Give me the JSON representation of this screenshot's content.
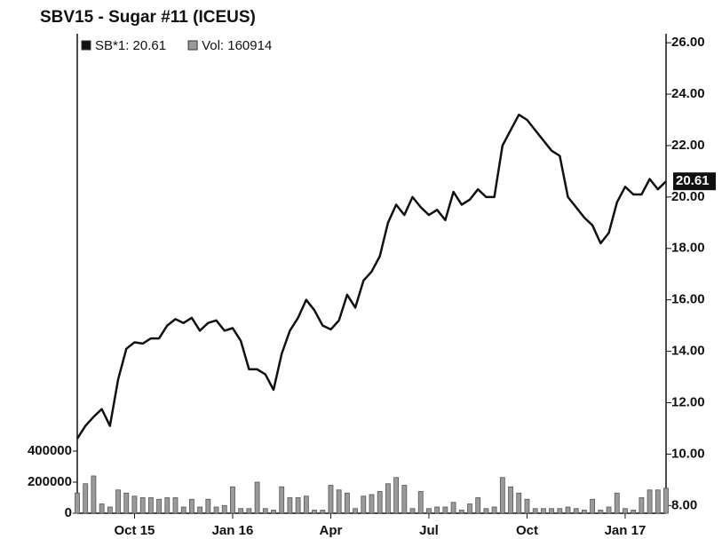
{
  "chart_data": {
    "type": "line",
    "title": "SBV15 - Sugar #11 (ICEUS)",
    "categories": [
      null,
      null,
      null,
      null,
      null,
      null,
      null,
      "Oct 15",
      null,
      null,
      null,
      null,
      null,
      null,
      null,
      null,
      null,
      null,
      null,
      "Jan 16",
      null,
      null,
      null,
      null,
      null,
      null,
      null,
      null,
      null,
      null,
      null,
      "Apr",
      null,
      null,
      null,
      null,
      null,
      null,
      null,
      null,
      null,
      null,
      null,
      "Jul",
      null,
      null,
      null,
      null,
      null,
      null,
      null,
      null,
      null,
      null,
      null,
      "Oct",
      null,
      null,
      null,
      null,
      null,
      null,
      null,
      null,
      null,
      null,
      null,
      "Jan 17",
      null,
      null,
      null,
      null,
      null
    ],
    "series": [
      {
        "name": "SB*1: 20.61",
        "type": "line",
        "color": "#111111",
        "values": [
          10.6,
          11.1,
          11.45,
          11.75,
          11.1,
          12.9,
          14.1,
          14.35,
          14.3,
          14.5,
          14.5,
          15.0,
          15.25,
          15.1,
          15.3,
          14.8,
          15.1,
          15.2,
          14.8,
          14.9,
          14.4,
          13.3,
          13.3,
          13.1,
          12.5,
          13.9,
          14.8,
          15.3,
          16.0,
          15.6,
          15.0,
          14.85,
          15.2,
          16.2,
          15.7,
          16.75,
          17.1,
          17.7,
          19.0,
          19.7,
          19.3,
          20.0,
          19.6,
          19.3,
          19.5,
          19.1,
          20.2,
          19.7,
          19.9,
          20.3,
          20.0,
          20.0,
          22.0,
          22.6,
          23.2,
          23.0,
          22.6,
          22.2,
          21.8,
          21.6,
          20.0,
          19.6,
          19.2,
          18.9,
          18.2,
          18.6,
          19.8,
          20.4,
          20.1,
          20.1,
          20.7,
          20.3,
          20.61
        ]
      },
      {
        "name": "Vol: 160914",
        "type": "bar",
        "axis": "y2",
        "color": "#9a9a9a",
        "values": [
          130000,
          190000,
          240000,
          60000,
          40000,
          150000,
          130000,
          110000,
          100000,
          100000,
          90000,
          100000,
          100000,
          40000,
          90000,
          40000,
          90000,
          40000,
          50000,
          170000,
          30000,
          30000,
          200000,
          30000,
          20000,
          170000,
          100000,
          100000,
          110000,
          20000,
          20000,
          180000,
          150000,
          130000,
          30000,
          110000,
          120000,
          140000,
          190000,
          230000,
          180000,
          30000,
          140000,
          30000,
          40000,
          40000,
          70000,
          20000,
          60000,
          100000,
          30000,
          40000,
          230000,
          170000,
          130000,
          90000,
          30000,
          30000,
          30000,
          30000,
          40000,
          30000,
          20000,
          90000,
          20000,
          40000,
          130000,
          30000,
          20000,
          100000,
          150000,
          150000,
          160914
        ]
      }
    ],
    "ylim": [
      7.7,
      26.35
    ],
    "yticks": [
      {
        "value": 8,
        "label": "8.00"
      },
      {
        "value": 10,
        "label": "10.00"
      },
      {
        "value": 12,
        "label": "12.00"
      },
      {
        "value": 14,
        "label": "14.00"
      },
      {
        "value": 16,
        "label": "16.00"
      },
      {
        "value": 18,
        "label": "18.00"
      },
      {
        "value": 20,
        "label": "20.00"
      },
      {
        "value": 22,
        "label": "22.00"
      },
      {
        "value": 24,
        "label": "24.00"
      },
      {
        "value": 26,
        "label": "26.00"
      }
    ],
    "y2lim": [
      0,
      3085000
    ],
    "y2ticks": [
      0,
      200000,
      400000
    ],
    "grid": false
  }
}
